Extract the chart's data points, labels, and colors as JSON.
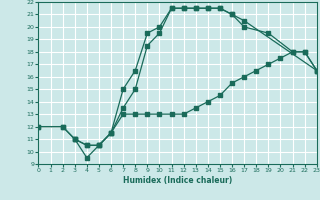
{
  "xlabel": "Humidex (Indice chaleur)",
  "bg_color": "#cce8e8",
  "grid_color": "#ffffff",
  "line_color": "#1a6b5a",
  "xlim": [
    0,
    23
  ],
  "ylim": [
    9,
    22
  ],
  "xticks": [
    0,
    1,
    2,
    3,
    4,
    5,
    6,
    7,
    8,
    9,
    10,
    11,
    12,
    13,
    14,
    15,
    16,
    17,
    18,
    19,
    20,
    21,
    22,
    23
  ],
  "yticks": [
    9,
    10,
    11,
    12,
    13,
    14,
    15,
    16,
    17,
    18,
    19,
    20,
    21,
    22
  ],
  "line1_x": [
    0,
    2,
    3,
    4,
    5,
    6,
    7,
    8,
    9,
    10,
    11,
    12,
    13,
    14,
    15,
    16,
    17,
    19,
    21,
    22,
    23
  ],
  "line1_y": [
    12,
    12,
    11,
    9.5,
    10.5,
    11.5,
    15,
    16.5,
    19.5,
    20,
    21.5,
    21.5,
    21.5,
    21.5,
    21.5,
    21,
    20,
    19.5,
    18,
    18,
    16.5
  ],
  "line2_x": [
    3,
    4,
    5,
    6,
    7,
    8,
    9,
    10,
    11,
    12,
    13,
    14,
    15,
    16,
    17,
    23
  ],
  "line2_y": [
    11,
    10.5,
    10.5,
    11.5,
    13.5,
    15,
    18.5,
    19.5,
    21.5,
    21.5,
    21.5,
    21.5,
    21.5,
    21,
    20.5,
    16.5
  ],
  "line3_x": [
    0,
    2,
    3,
    4,
    5,
    6,
    7,
    8,
    9,
    10,
    11,
    12,
    13,
    14,
    15,
    16,
    17,
    18,
    19,
    20,
    21,
    22,
    23
  ],
  "line3_y": [
    12,
    12,
    11,
    10.5,
    10.5,
    11.5,
    13,
    13,
    13,
    13,
    13,
    13,
    13.5,
    14,
    14.5,
    15.5,
    16,
    16.5,
    17,
    17.5,
    18,
    18,
    16.5
  ]
}
